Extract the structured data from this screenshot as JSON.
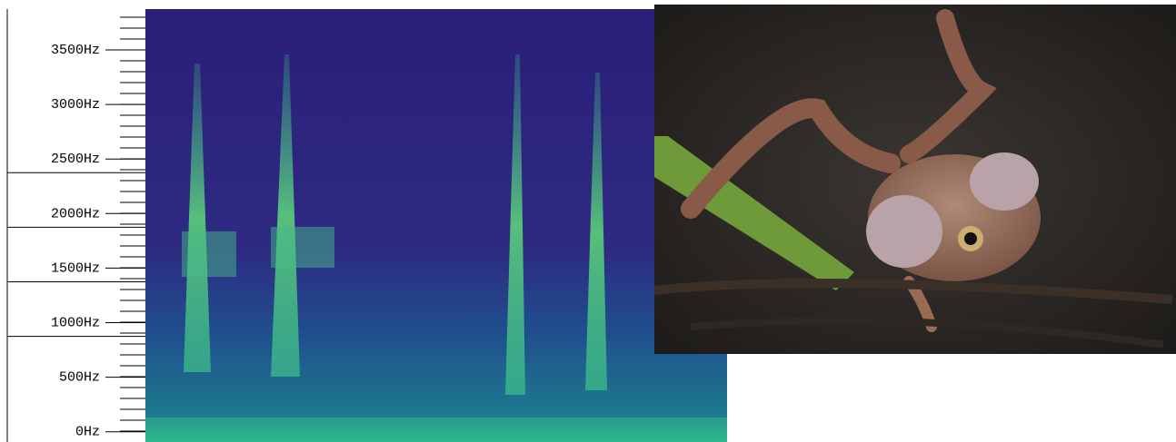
{
  "spectrogram": {
    "frequency_labels": [
      "3500Hz",
      "3000Hz",
      "2500Hz",
      "2000Hz",
      "1500Hz",
      "1000Hz",
      "500Hz",
      "0Hz"
    ]
  }
}
